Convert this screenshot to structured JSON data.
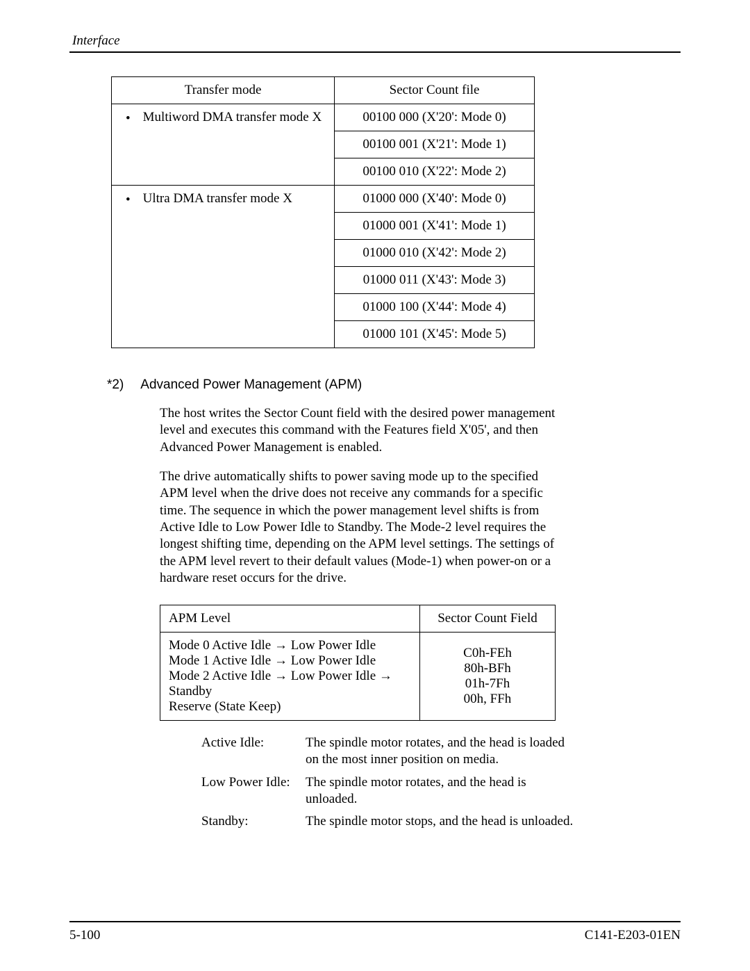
{
  "header": {
    "running_head": "Interface"
  },
  "table1": {
    "headers": {
      "mode": "Transfer mode",
      "scf": "Sector Count file"
    },
    "groups": [
      {
        "label": "Multiword DMA transfer mode X",
        "rows": [
          "00100  000 (X'20':  Mode 0)",
          "00100  001 (X'21':  Mode 1)",
          "00100  010 (X'22':  Mode 2)"
        ]
      },
      {
        "label": "Ultra DMA transfer mode X",
        "rows": [
          "01000 000 (X'40':  Mode 0)",
          "01000 001 (X'41':  Mode 1)",
          "01000 010 (X'42':  Mode 2)",
          "01000 011 (X'43':  Mode 3)",
          "01000 100 (X'44':  Mode 4)",
          "01000 101 (X'45':  Mode 5)"
        ]
      }
    ]
  },
  "section": {
    "num": "*2)",
    "title": "Advanced Power Management (APM)"
  },
  "para1": "The host writes the Sector Count field with the desired power management level and executes this command with the Features field X'05', and then Advanced Power Management is enabled.",
  "para2": "The drive automatically shifts to power saving mode up to the specified APM level when the drive does not receive any commands for a specific time. The sequence in which the power management level shifts is from Active Idle to Low Power Idle to Standby. The Mode-2 level requires the longest shifting time, depending on the APM level settings. The settings of the APM level revert to their default values (Mode-1) when power-on or a hardware reset occurs for the drive.",
  "table2": {
    "headers": {
      "apm": "APM Level",
      "scf": "Sector Count Field"
    },
    "rows": [
      {
        "apm": "Mode 0 Active Idle → Low Power Idle",
        "scf": "C0h-FEh"
      },
      {
        "apm": "Mode 1 Active Idle → Low Power Idle",
        "scf": "80h-BFh"
      },
      {
        "apm": "Mode 2 Active Idle → Low Power Idle → Standby",
        "scf": "01h-7Fh"
      },
      {
        "apm": "Reserve (State Keep)",
        "scf": "00h, FFh"
      }
    ]
  },
  "defs": [
    {
      "term": "Active Idle:",
      "body": "The spindle motor rotates, and the head is loaded on the most inner position on media."
    },
    {
      "term": "Low Power Idle:",
      "body": "The spindle motor rotates, and the head is unloaded."
    },
    {
      "term": "Standby:",
      "body": "The spindle motor stops, and the head is unloaded."
    }
  ],
  "footer": {
    "left": "5-100",
    "right": "C141-E203-01EN"
  }
}
